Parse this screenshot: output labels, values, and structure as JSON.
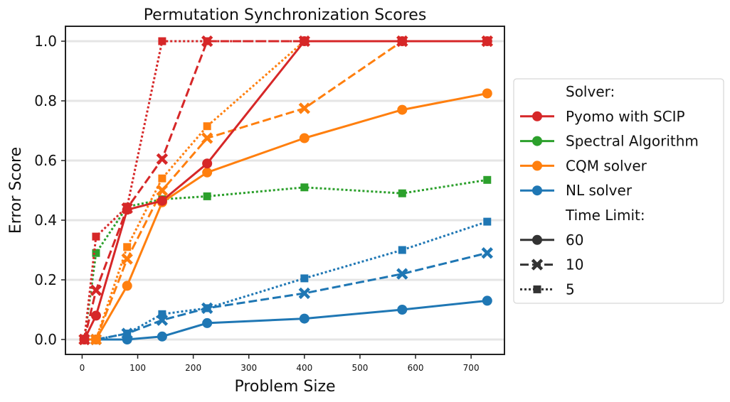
{
  "chart_data": {
    "type": "line",
    "title": "Permutation Synchronization Scores",
    "xlabel": "Problem Size",
    "ylabel": "Error Score",
    "xlim": [
      -30,
      760
    ],
    "ylim": [
      -0.05,
      1.05
    ],
    "xticks": [
      0,
      100,
      200,
      300,
      400,
      500,
      600,
      700
    ],
    "xtick_labels": [
      "0",
      "100",
      "200",
      "300",
      "400",
      "500",
      "600",
      "700"
    ],
    "yticks": [
      0.0,
      0.2,
      0.4,
      0.6,
      0.8,
      1.0
    ],
    "ytick_labels": [
      "0.0",
      "0.2",
      "0.4",
      "0.6",
      "0.8",
      "1.0"
    ],
    "grid": "horizontal",
    "legend_position": "right-outside",
    "x": [
      4,
      25,
      81,
      144,
      225,
      400,
      576,
      729
    ],
    "colors": {
      "Pyomo with SCIP": "#d62728",
      "Spectral Algorithm": "#2ca02c",
      "CQM solver": "#ff7f0e",
      "NL solver": "#1f77b4"
    },
    "styles": {
      "60": {
        "dash": "solid",
        "marker": "circle"
      },
      "10": {
        "dash": "dashed",
        "marker": "x"
      },
      "5": {
        "dash": "dotted",
        "marker": "square"
      }
    },
    "series": [
      {
        "solver": "Spectral Algorithm",
        "time_limit": "5",
        "values": [
          0,
          0.29,
          0.445,
          0.47,
          0.48,
          0.51,
          0.49,
          0.535
        ]
      },
      {
        "solver": "NL solver",
        "time_limit": "60",
        "values": [
          0,
          0,
          0,
          0.01,
          0.055,
          0.07,
          0.1,
          0.13
        ]
      },
      {
        "solver": "NL solver",
        "time_limit": "10",
        "values": [
          0,
          0,
          0.02,
          0.065,
          0.105,
          0.155,
          0.22,
          0.29
        ]
      },
      {
        "solver": "NL solver",
        "time_limit": "5",
        "values": [
          0,
          0,
          0.02,
          0.085,
          0.105,
          0.205,
          0.3,
          0.395
        ]
      },
      {
        "solver": "CQM solver",
        "time_limit": "60",
        "values": [
          0,
          0,
          0.18,
          0.46,
          0.56,
          0.675,
          0.77,
          0.825
        ]
      },
      {
        "solver": "CQM solver",
        "time_limit": "10",
        "values": [
          0,
          0,
          0.27,
          0.5,
          0.675,
          0.775,
          1.0,
          1.0
        ]
      },
      {
        "solver": "CQM solver",
        "time_limit": "5",
        "values": [
          0,
          0,
          0.31,
          0.54,
          0.715,
          1.0,
          1.0,
          1.0
        ]
      },
      {
        "solver": "Pyomo with SCIP",
        "time_limit": "60",
        "values": [
          0,
          0.08,
          0.435,
          0.465,
          0.59,
          1.0,
          1.0,
          1.0
        ]
      },
      {
        "solver": "Pyomo with SCIP",
        "time_limit": "10",
        "values": [
          0,
          0.165,
          0.44,
          0.605,
          1.0,
          1.0,
          1.0,
          1.0
        ]
      },
      {
        "solver": "Pyomo with SCIP",
        "time_limit": "5",
        "values": [
          0,
          0.345,
          0.445,
          1.0,
          1.0,
          1.0,
          1.0,
          1.0
        ]
      }
    ],
    "legend": {
      "solver_header": "Solver:",
      "solvers": [
        "Pyomo with SCIP",
        "Spectral Algorithm",
        "CQM solver",
        "NL solver"
      ],
      "time_header": "Time Limit:",
      "time_limits": [
        "60",
        "10",
        "5"
      ],
      "time_color": "#333333"
    }
  }
}
